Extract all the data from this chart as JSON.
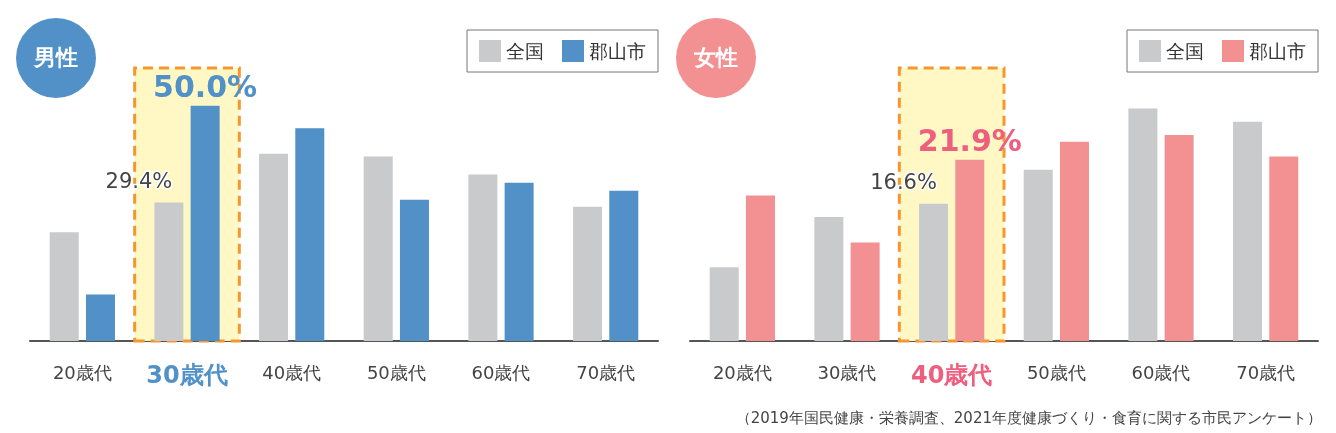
{
  "chart_data": [
    {
      "type": "bar",
      "title": "男性",
      "categories": [
        "20歳代",
        "30歳代",
        "40歳代",
        "50歳代",
        "60歳代",
        "70歳代"
      ],
      "series": [
        {
          "name": "全国",
          "color": "#c9cacc",
          "values": [
            23.1,
            29.4,
            39.8,
            39.2,
            35.4,
            28.5
          ],
          "value_labels": [
            null,
            "29.4%",
            null,
            null,
            null,
            null
          ]
        },
        {
          "name": "郡山市",
          "color": "#5191c8",
          "values": [
            9.9,
            50.0,
            45.2,
            30.0,
            33.6,
            31.9
          ],
          "value_labels": [
            null,
            "50.0%",
            null,
            null,
            null,
            null
          ]
        }
      ],
      "ylim": [
        0,
        58
      ],
      "bands": [
        {
          "axis": "x",
          "from": "30歳代",
          "to": "30歳代",
          "color": "#fff8c4"
        }
      ],
      "legend": "top right",
      "grid": false
    },
    {
      "type": "bar",
      "title": "女性",
      "categories": [
        "20歳代",
        "30歳代",
        "40歳代",
        "50歳代",
        "60歳代",
        "70歳代"
      ],
      "series": [
        {
          "name": "全国",
          "color": "#c9cacc",
          "values": [
            8.9,
            15.0,
            16.6,
            20.7,
            28.1,
            26.5
          ],
          "value_labels": [
            null,
            null,
            "16.6%",
            null,
            null,
            null
          ]
        },
        {
          "name": "郡山市",
          "color": "#f29092",
          "values": [
            17.6,
            11.9,
            21.9,
            24.1,
            24.9,
            22.3
          ],
          "value_labels": [
            null,
            null,
            "21.9%",
            null,
            null,
            null
          ]
        }
      ],
      "ylim": [
        0,
        33
      ],
      "bands": [
        {
          "axis": "x",
          "from": "40歳代",
          "to": "40歳代",
          "color": "#fff8c4"
        }
      ],
      "legend": "top right",
      "grid": false,
      "annotations": [
        "（2019年国民健康・栄養調査、2021年度健康づくり・食育に関する市民アンケート）"
      ]
    }
  ]
}
